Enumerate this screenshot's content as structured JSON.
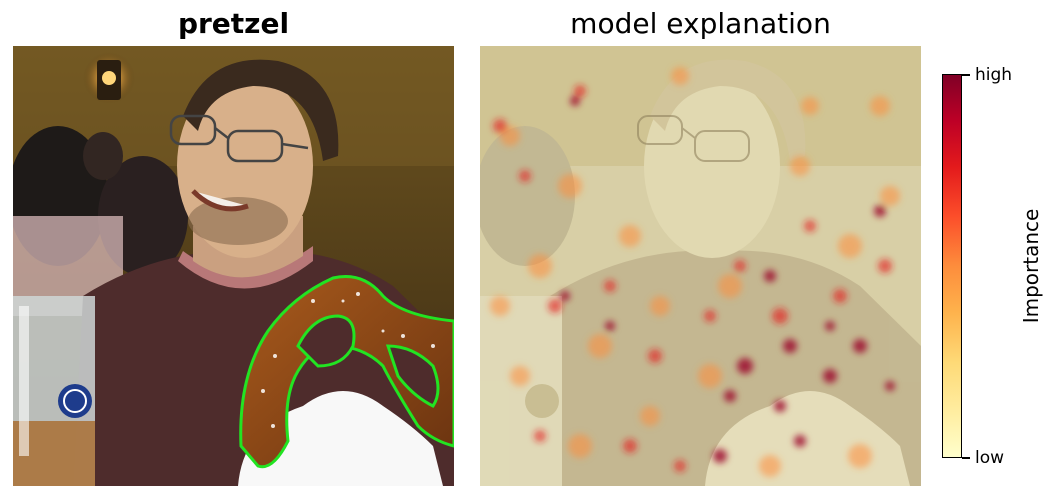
{
  "left_panel": {
    "title": "pretzel"
  },
  "right_panel": {
    "title": "model explanation"
  },
  "colorbar": {
    "title": "Importance",
    "high_label": "high",
    "low_label": "low",
    "colors": [
      "#ffffcc",
      "#ffeda0",
      "#fed976",
      "#feb24c",
      "#fd8d3c",
      "#fc4e2a",
      "#e31a1c",
      "#bd0026",
      "#800026"
    ]
  },
  "outline_color": "#22e422"
}
